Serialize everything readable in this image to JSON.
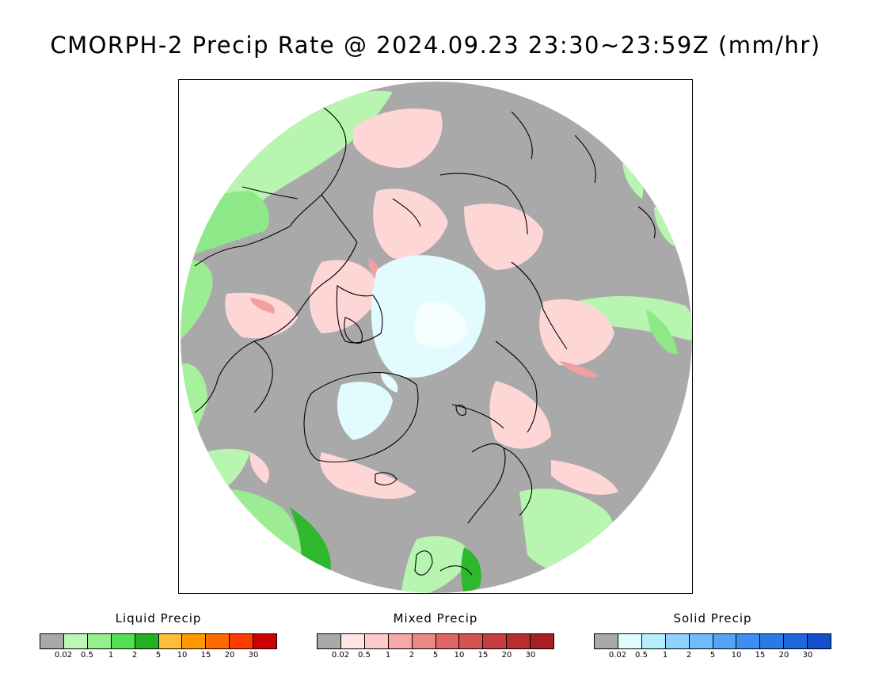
{
  "title": "CMORPH-2 Precip Rate @ 2024.09.23 23:30~23:59Z (mm/hr)",
  "map": {
    "projection": "north-polar-stereographic",
    "colors": {
      "no_precip": "#a9a9a9",
      "light_liquid": "#b8f5b0",
      "mid_liquid": "#8ee888",
      "strong_liquid": "#2db82d",
      "light_mixed": "#ffd6d6",
      "mid_mixed": "#f0a0a0",
      "light_solid": "#e2fbff",
      "coastline": "#000000"
    }
  },
  "legends": [
    {
      "title": "Liquid Precip",
      "colors": [
        "#a9a9a9",
        "#bdf7b5",
        "#95ef8c",
        "#55e053",
        "#23b023",
        "#ffbd3a",
        "#ff9900",
        "#ff6a00",
        "#ff3c00",
        "#cc0000"
      ],
      "ticks": [
        "0.02",
        "0.5",
        "1",
        "2",
        "5",
        "10",
        "15",
        "20",
        "30"
      ]
    },
    {
      "title": "Mixed Precip",
      "colors": [
        "#a9a9a9",
        "#ffe4e4",
        "#ffcaca",
        "#f4a8a8",
        "#ea8888",
        "#de6666",
        "#d45353",
        "#c63f3f",
        "#b82e2e",
        "#a62222"
      ],
      "ticks": [
        "0.02",
        "0.5",
        "1",
        "2",
        "5",
        "10",
        "15",
        "20",
        "30"
      ]
    },
    {
      "title": "Solid Precip",
      "colors": [
        "#a9a9a9",
        "#e2fbff",
        "#b5efff",
        "#90d2ff",
        "#72bbff",
        "#55a4f5",
        "#3d8eee",
        "#2a7ae6",
        "#1e66dc",
        "#1450cc"
      ],
      "ticks": [
        "0.02",
        "0.5",
        "1",
        "2",
        "5",
        "10",
        "15",
        "20",
        "30"
      ]
    }
  ]
}
